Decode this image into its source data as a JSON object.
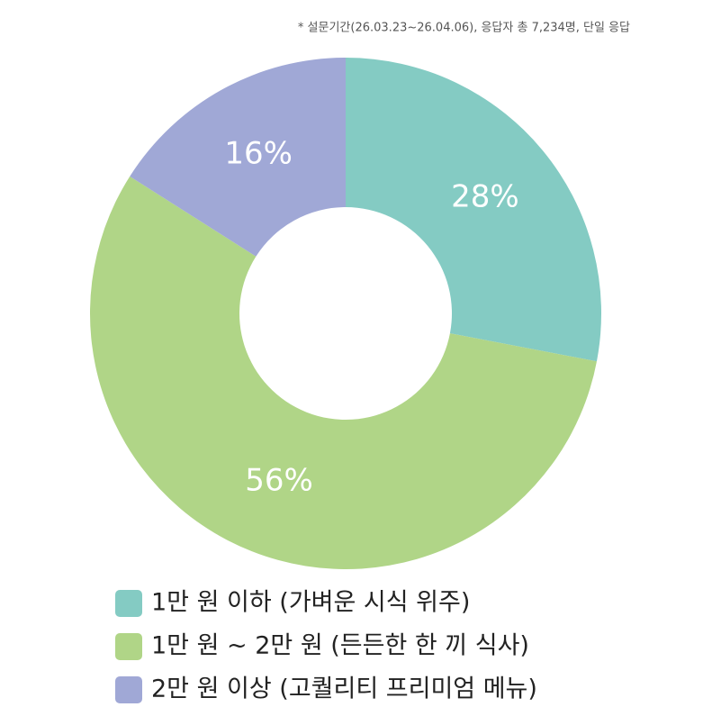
{
  "chart_data": {
    "type": "donut",
    "subtitle": "* 설문기간(26.03.23~26.04.06), 응답자 총 7,234명, 단일 응답",
    "categories": [
      "1만 원 이하 (가벼운 시식 위주)",
      "1만 원 ~ 2만 원 (든든한 한 끼 식사)",
      "2만 원 이상 (고퀄리티 프리미엄 메뉴)"
    ],
    "values": [
      28,
      56,
      16
    ],
    "value_labels": [
      "28%",
      "56%",
      "16%"
    ],
    "colors": [
      "#84cbc3",
      "#b0d587",
      "#a0a8d6"
    ],
    "legend": "bottom"
  }
}
